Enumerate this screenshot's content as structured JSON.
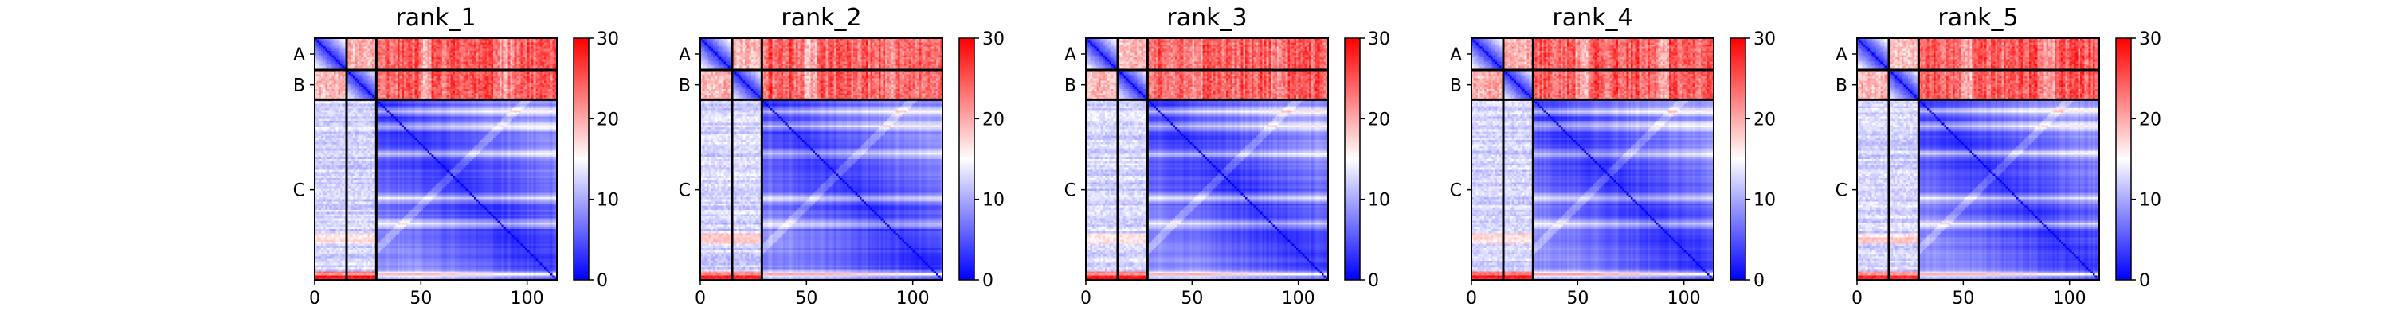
{
  "chart_data": {
    "type": "heatmap",
    "description_of_values": "predicted aligned error matrix, 114 x 114 residues",
    "colormap": {
      "name": "bwr",
      "low": "#0000ff",
      "mid": "#ffffff",
      "high": "#ff0000"
    },
    "color_range": [
      0,
      30
    ],
    "colorbar_ticks": [
      "0",
      "10",
      "20",
      "30"
    ],
    "x_ticks": [
      "0",
      "50",
      "100"
    ],
    "x_tick_values": [
      0,
      50,
      100
    ],
    "x_range": [
      0,
      114
    ],
    "chains": [
      {
        "label": "A",
        "start": 0,
        "end": 15
      },
      {
        "label": "B",
        "start": 15,
        "end": 29
      },
      {
        "label": "C",
        "start": 29,
        "end": 114
      }
    ],
    "panels": [
      {
        "title": "rank_1",
        "seed": 11
      },
      {
        "title": "rank_2",
        "seed": 23
      },
      {
        "title": "rank_3",
        "seed": 37
      },
      {
        "title": "rank_4",
        "seed": 41
      },
      {
        "title": "rank_5",
        "seed": 53
      }
    ]
  }
}
